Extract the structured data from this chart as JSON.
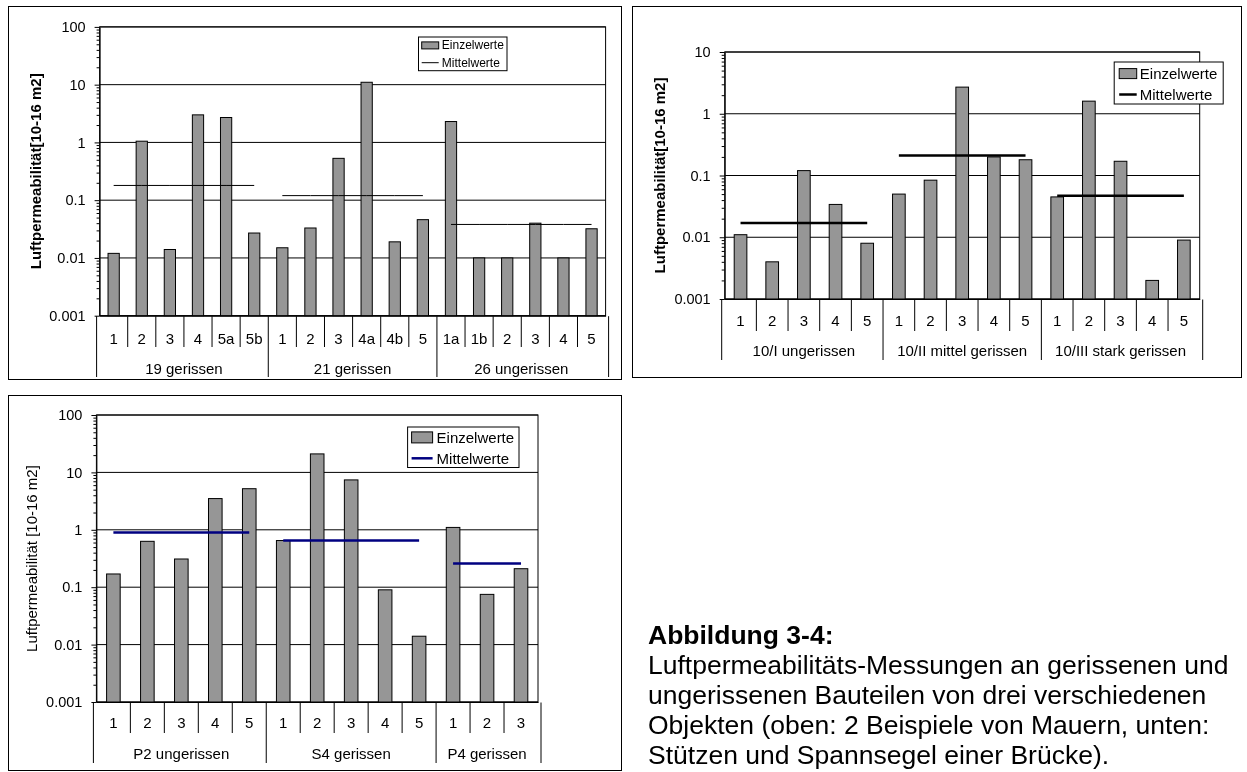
{
  "chart_data": [
    {
      "type": "bar",
      "ylabel": "Luftpermeabilität[10-16 m2]",
      "categories": [
        "1",
        "2",
        "3",
        "4",
        "5a",
        "5b",
        "1",
        "2",
        "3",
        "4a",
        "4b",
        "5",
        "1a",
        "1b",
        "2",
        "3",
        "4",
        "5"
      ],
      "series": [
        {
          "name": "Einzelwerte",
          "type": "bar",
          "color": "#969696",
          "values": [
            0.012,
            1.05,
            0.014,
            3,
            2.7,
            0.027,
            0.015,
            0.033,
            0.53,
            11,
            0.019,
            0.046,
            2.3,
            0.01,
            0.01,
            0.04,
            0.01,
            0.032
          ]
        },
        {
          "name": "Mittelwerte",
          "type": "line",
          "color": "#000000",
          "values": [
            0.18,
            0.18,
            0.18,
            0.18,
            0.18,
            0.18,
            0.12,
            0.12,
            0.12,
            0.12,
            0.12,
            0.12,
            0.038,
            0.038,
            0.038,
            0.038,
            0.038,
            0.038
          ]
        }
      ],
      "annotations": [
        "19 gerissen",
        "21 gerissen",
        "26 ungerissen"
      ],
      "log": true,
      "ylim": [
        0.001,
        100
      ],
      "yticks": [
        0.001,
        {
          "value": 0.002,
          "label": null
        },
        {
          "value": 0.003,
          "label": null
        },
        {
          "value": 0.004,
          "label": null
        },
        {
          "value": 0.005,
          "label": null
        },
        {
          "value": 0.006,
          "label": null
        },
        {
          "value": 0.007,
          "label": null
        },
        {
          "value": 0.008,
          "label": null
        },
        {
          "value": 0.009,
          "label": null
        },
        0.01,
        {
          "value": 0.02,
          "label": null
        },
        {
          "value": 0.03,
          "label": null
        },
        {
          "value": 0.04,
          "label": null
        },
        {
          "value": 0.05,
          "label": null
        },
        {
          "value": 0.06,
          "label": null
        },
        {
          "value": 0.07,
          "label": null
        },
        {
          "value": 0.08,
          "label": null
        },
        {
          "value": 0.09,
          "label": null
        },
        0.1,
        {
          "value": 0.2,
          "label": null
        },
        {
          "value": 0.3,
          "label": null
        },
        {
          "value": 0.4,
          "label": null
        },
        {
          "value": 0.5,
          "label": null
        },
        {
          "value": 0.6,
          "label": null
        },
        {
          "value": 0.7,
          "label": null
        },
        {
          "value": 0.8,
          "label": null
        },
        {
          "value": 0.9,
          "label": null
        },
        1,
        {
          "value": 2,
          "label": null
        },
        {
          "value": 3,
          "label": null
        },
        {
          "value": 4,
          "label": null
        },
        {
          "value": 5,
          "label": null
        },
        {
          "value": 6,
          "label": null
        },
        {
          "value": 7,
          "label": null
        },
        {
          "value": 8,
          "label": null
        },
        {
          "value": 9,
          "label": null
        },
        10,
        {
          "value": 20,
          "label": null
        },
        {
          "value": 30,
          "label": null
        },
        {
          "value": 40,
          "label": null
        },
        {
          "value": 50,
          "label": null
        },
        {
          "value": 60,
          "label": null
        },
        {
          "value": 70,
          "label": null
        },
        {
          "value": 80,
          "label": null
        },
        {
          "value": 90,
          "label": null
        },
        100
      ],
      "grid": "y",
      "legend": "top right"
    },
    {
      "type": "bar",
      "ylabel": "Luftpermeabilität[10-16 m2]",
      "categories": [
        "1",
        "2",
        "3",
        "4",
        "5",
        "1",
        "2",
        "3",
        "4",
        "5",
        "1",
        "2",
        "3",
        "4",
        "5"
      ],
      "series": [
        {
          "name": "Einzelwerte",
          "type": "bar",
          "color": "#969696",
          "values": [
            0.011,
            0.004,
            0.12,
            0.034,
            0.008,
            0.05,
            0.084,
            2.7,
            0.2,
            0.18,
            0.045,
            1.6,
            0.17,
            0.002,
            0.009
          ]
        },
        {
          "name": "Mittelwerte",
          "type": "line",
          "color": "#000000",
          "values": [
            0.017,
            0.017,
            0.017,
            0.017,
            0.017,
            0.21,
            0.21,
            0.21,
            0.21,
            0.21,
            0.047,
            0.047,
            0.047,
            0.047,
            0.047
          ]
        }
      ],
      "annotations": [
        "10/I ungerissen",
        "10/II mittel gerissen",
        "10/III stark gerissen"
      ],
      "log": true,
      "ylim": [
        0.001,
        10
      ],
      "yticks": [
        0.001,
        {
          "value": 0.002,
          "label": null
        },
        {
          "value": 0.003,
          "label": null
        },
        {
          "value": 0.004,
          "label": null
        },
        {
          "value": 0.005,
          "label": null
        },
        {
          "value": 0.006,
          "label": null
        },
        {
          "value": 0.007,
          "label": null
        },
        {
          "value": 0.008,
          "label": null
        },
        {
          "value": 0.009,
          "label": null
        },
        0.01,
        {
          "value": 0.02,
          "label": null
        },
        {
          "value": 0.03,
          "label": null
        },
        {
          "value": 0.04,
          "label": null
        },
        {
          "value": 0.05,
          "label": null
        },
        {
          "value": 0.06,
          "label": null
        },
        {
          "value": 0.07,
          "label": null
        },
        {
          "value": 0.08,
          "label": null
        },
        {
          "value": 0.09,
          "label": null
        },
        0.1,
        {
          "value": 0.2,
          "label": null
        },
        {
          "value": 0.3,
          "label": null
        },
        {
          "value": 0.4,
          "label": null
        },
        {
          "value": 0.5,
          "label": null
        },
        {
          "value": 0.6,
          "label": null
        },
        {
          "value": 0.7,
          "label": null
        },
        {
          "value": 0.8,
          "label": null
        },
        {
          "value": 0.9,
          "label": null
        },
        1,
        {
          "value": 2,
          "label": null
        },
        {
          "value": 3,
          "label": null
        },
        {
          "value": 4,
          "label": null
        },
        {
          "value": 5,
          "label": null
        },
        {
          "value": 6,
          "label": null
        },
        {
          "value": 7,
          "label": null
        },
        {
          "value": 8,
          "label": null
        },
        {
          "value": 9,
          "label": null
        },
        10
      ],
      "grid": "y",
      "legend": "top right"
    },
    {
      "type": "bar",
      "ylabel": "Luftpermeabilität [10-16 m2]",
      "categories": [
        "1",
        "2",
        "3",
        "4",
        "5",
        "1",
        "2",
        "3",
        "4",
        "5",
        "1",
        "2",
        "3"
      ],
      "series": [
        {
          "name": "Einzelwerte",
          "type": "bar",
          "color": "#969696",
          "values": [
            0.17,
            0.63,
            0.31,
            3.5,
            5.2,
            0.65,
            21,
            7.4,
            0.09,
            0.014,
            1.1,
            0.075,
            0.21
          ]
        },
        {
          "name": "Mittelwerte",
          "type": "line",
          "color": "#000080",
          "values": [
            0.9,
            0.9,
            0.9,
            0.9,
            0.9,
            0.65,
            0.65,
            0.65,
            0.65,
            0.65,
            0.26,
            0.26,
            0.26
          ]
        }
      ],
      "annotations": [
        "P2 ungerissen",
        "S4 gerissen",
        "P4 gerissen"
      ],
      "log": true,
      "ylim": [
        0.001,
        100
      ],
      "yticks": [
        0.001,
        {
          "value": 0.002,
          "label": null
        },
        {
          "value": 0.003,
          "label": null
        },
        {
          "value": 0.004,
          "label": null
        },
        {
          "value": 0.005,
          "label": null
        },
        {
          "value": 0.006,
          "label": null
        },
        {
          "value": 0.007,
          "label": null
        },
        {
          "value": 0.008,
          "label": null
        },
        {
          "value": 0.009,
          "label": null
        },
        0.01,
        {
          "value": 0.02,
          "label": null
        },
        {
          "value": 0.03,
          "label": null
        },
        {
          "value": 0.04,
          "label": null
        },
        {
          "value": 0.05,
          "label": null
        },
        {
          "value": 0.06,
          "label": null
        },
        {
          "value": 0.07,
          "label": null
        },
        {
          "value": 0.08,
          "label": null
        },
        {
          "value": 0.09,
          "label": null
        },
        0.1,
        {
          "value": 0.2,
          "label": null
        },
        {
          "value": 0.3,
          "label": null
        },
        {
          "value": 0.4,
          "label": null
        },
        {
          "value": 0.5,
          "label": null
        },
        {
          "value": 0.6,
          "label": null
        },
        {
          "value": 0.7,
          "label": null
        },
        {
          "value": 0.8,
          "label": null
        },
        {
          "value": 0.9,
          "label": null
        },
        1,
        {
          "value": 2,
          "label": null
        },
        {
          "value": 3,
          "label": null
        },
        {
          "value": 4,
          "label": null
        },
        {
          "value": 5,
          "label": null
        },
        {
          "value": 6,
          "label": null
        },
        {
          "value": 7,
          "label": null
        },
        {
          "value": 8,
          "label": null
        },
        {
          "value": 9,
          "label": null
        },
        10,
        {
          "value": 20,
          "label": null
        },
        {
          "value": 30,
          "label": null
        },
        {
          "value": 40,
          "label": null
        },
        {
          "value": 50,
          "label": null
        },
        {
          "value": 60,
          "label": null
        },
        {
          "value": 70,
          "label": null
        },
        {
          "value": 80,
          "label": null
        },
        {
          "value": 90,
          "label": null
        },
        100
      ],
      "grid": "y",
      "legend": "top right"
    },
    {
      "type": "other",
      "title": "Abbildung 3-4:",
      "annotations": [
        "Luftpermeabilitäts-Messungen an gerissenen und ungerissenen Bauteilen von drei verschiedenen Objekten (oben: 2 Beispiele von Mauern, unten: Stützen und Spannsegel einer Brücke)."
      ]
    }
  ]
}
